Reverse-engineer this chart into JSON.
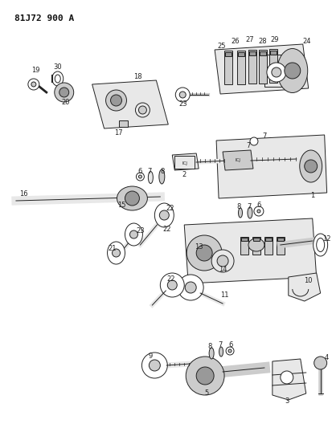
{
  "title": "81J72 900 A",
  "bg_color": "#ffffff",
  "lw": 0.7,
  "ec": "#222222",
  "fc_light": "#e8e8e8",
  "fc_white": "#ffffff",
  "fc_mid": "#cccccc",
  "fc_dark": "#999999"
}
